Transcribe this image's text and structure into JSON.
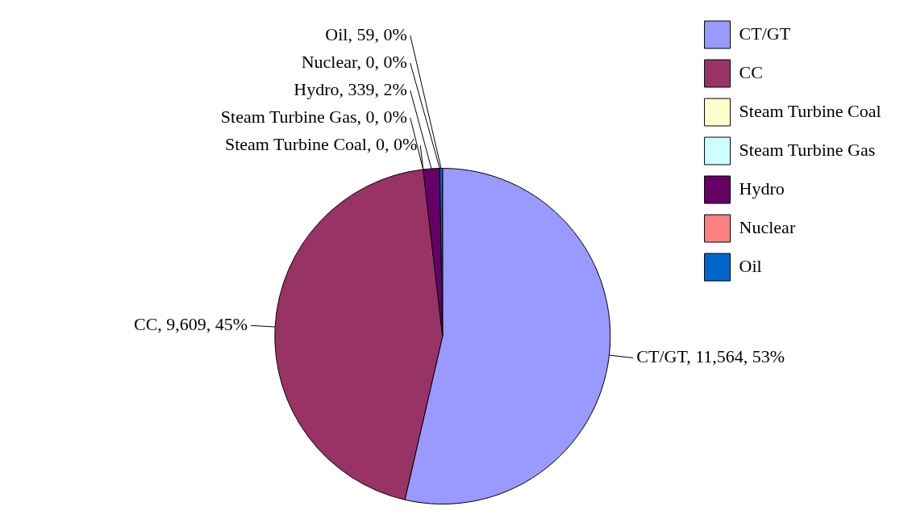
{
  "chart_data": {
    "type": "pie",
    "categories": [
      "CT/GT",
      "CC",
      "Steam Turbine Coal",
      "Steam Turbine Gas",
      "Hydro",
      "Nuclear",
      "Oil"
    ],
    "values": [
      11564,
      9609,
      0,
      0,
      339,
      0,
      59
    ],
    "colors": [
      "#9999ff",
      "#993366",
      "#ffffcc",
      "#ccffff",
      "#660066",
      "#ff8080",
      "#0066cc"
    ],
    "value_labels": [
      "CT/GT, 11,564, 53%",
      "CC, 9,609, 45%",
      "Steam Turbine Coal, 0, 0%",
      "Steam Turbine Gas, 0, 0%",
      "Hydro, 339, 2%",
      "Nuclear, 0, 0%",
      "Oil, 59, 0%"
    ],
    "legend": "top right"
  }
}
